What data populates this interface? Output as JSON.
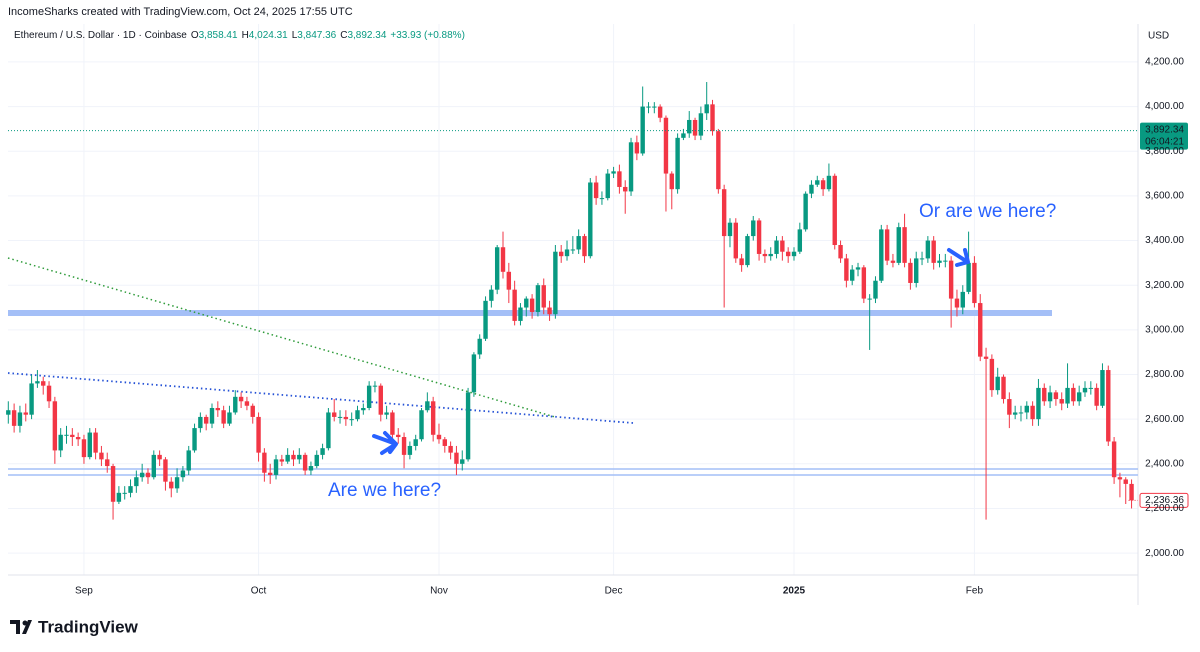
{
  "chart_data": {
    "type": "candlestick",
    "header": "IncomeSharks created with TradingView.com, Oct 24, 2025 17:55 UTC",
    "symbol": "Ethereum / U.S. Dollar · 1D · Coinbase",
    "quote": [
      {
        "key": "O",
        "value": "3,858.41"
      },
      {
        "key": "H",
        "value": "4,024.31"
      },
      {
        "key": "L",
        "value": "3,847.36"
      },
      {
        "key": "C",
        "value": "3,892.34"
      }
    ],
    "change": "+33.93 (+0.88%)",
    "currency": "USD",
    "last_price": {
      "value": 3892.34,
      "label": "3,892.34"
    },
    "countdown": "06:04:21",
    "last_close_label": "2,236.36",
    "annotations": [
      "Are we here?",
      "Or are we here?"
    ],
    "brand": "TradingView",
    "up_color": "#089981",
    "down_color": "#f23645",
    "grid": true,
    "ylim": [
      1902,
      4343
    ],
    "yticks": [
      {
        "value": 2000,
        "label": "2,000.00"
      },
      {
        "value": 2200,
        "label": "2,200.00"
      },
      {
        "value": 2400,
        "label": "2,400.00"
      },
      {
        "value": 2600,
        "label": "2,600.00"
      },
      {
        "value": 2800,
        "label": "2,800.00"
      },
      {
        "value": 3000,
        "label": "3,000.00"
      },
      {
        "value": 3200,
        "label": "3,200.00"
      },
      {
        "value": 3400,
        "label": "3,400.00"
      },
      {
        "value": 3600,
        "label": "3,600.00"
      },
      {
        "value": 3800,
        "label": "3,800.00"
      },
      {
        "value": 4000,
        "label": "4,000.00"
      },
      {
        "value": 4200,
        "label": "4,200.00"
      }
    ],
    "categories": [
      null,
      null,
      null,
      null,
      null,
      null,
      null,
      null,
      null,
      null,
      null,
      null,
      null,
      "Sep",
      null,
      null,
      null,
      null,
      null,
      null,
      null,
      null,
      null,
      null,
      null,
      null,
      null,
      null,
      null,
      null,
      null,
      null,
      null,
      null,
      null,
      null,
      null,
      null,
      null,
      null,
      null,
      null,
      null,
      "Oct",
      null,
      null,
      null,
      null,
      null,
      null,
      null,
      null,
      null,
      null,
      null,
      null,
      null,
      null,
      null,
      null,
      null,
      null,
      null,
      null,
      null,
      null,
      null,
      null,
      null,
      null,
      null,
      null,
      null,
      null,
      "Nov",
      null,
      null,
      null,
      null,
      null,
      null,
      null,
      null,
      null,
      null,
      null,
      null,
      null,
      null,
      null,
      null,
      null,
      null,
      null,
      null,
      null,
      null,
      null,
      null,
      null,
      null,
      null,
      null,
      null,
      "Dec",
      null,
      null,
      null,
      null,
      null,
      null,
      null,
      null,
      null,
      null,
      null,
      null,
      null,
      null,
      null,
      null,
      null,
      null,
      null,
      null,
      null,
      null,
      null,
      null,
      null,
      null,
      null,
      null,
      null,
      null,
      "2025",
      null,
      null,
      null,
      null,
      null,
      null,
      null,
      null,
      null,
      null,
      null,
      null,
      null,
      null,
      null,
      null,
      null,
      null,
      null,
      null,
      null,
      null,
      null,
      null,
      null,
      null,
      null,
      null,
      null,
      null,
      "Feb",
      null,
      null,
      null,
      null,
      null,
      null,
      null,
      null,
      null,
      null,
      null,
      null,
      null,
      null,
      null,
      null,
      null,
      null,
      null,
      null,
      null,
      null,
      null,
      null,
      null,
      null,
      null
    ],
    "open": [
      2620,
      2640,
      2570,
      2630,
      2620,
      2760,
      2770,
      2750,
      2680,
      2460,
      2530,
      2530,
      2520,
      2510,
      2430,
      2540,
      2450,
      2420,
      2390,
      2230,
      2270,
      2270,
      2300,
      2340,
      2360,
      2340,
      2440,
      2420,
      2320,
      2290,
      2340,
      2370,
      2460,
      2560,
      2610,
      2580,
      2650,
      2640,
      2580,
      2630,
      2700,
      2680,
      2660,
      2610,
      2450,
      2360,
      2350,
      2420,
      2410,
      2440,
      2420,
      2440,
      2370,
      2390,
      2440,
      2470,
      2630,
      2610,
      2610,
      2600,
      2600,
      2640,
      2650,
      2750,
      2750,
      2620,
      2630,
      2530,
      2520,
      2440,
      2480,
      2510,
      2640,
      2680,
      2530,
      2510,
      2480,
      2450,
      2400,
      2420,
      2720,
      2890,
      2960,
      3130,
      3180,
      3370,
      3260,
      3180,
      3040,
      3100,
      3140,
      3080,
      3200,
      3100,
      3070,
      3350,
      3330,
      3360,
      3360,
      3420,
      3330,
      3660,
      3590,
      3590,
      3700,
      3710,
      3640,
      3620,
      3840,
      3790,
      4000,
      4000,
      4000,
      3950,
      3700,
      3630,
      3860,
      3880,
      3940,
      3870,
      3970,
      4010,
      3890,
      3630,
      3420,
      3480,
      3320,
      3290,
      3420,
      3490,
      3340,
      3330,
      3340,
      3400,
      3350,
      3330,
      3350,
      3450,
      3610,
      3650,
      3670,
      3630,
      3690,
      3380,
      3320,
      3220,
      3270,
      3280,
      3140,
      3140,
      3220,
      3450,
      3310,
      3300,
      3460,
      3300,
      3210,
      3320,
      3320,
      3400,
      3300,
      3310,
      3310,
      3140,
      3100,
      3170,
      3300,
      3120,
      2880,
      2870,
      2730,
      2790,
      2690,
      2620,
      2630,
      2630,
      2660,
      2600,
      2740,
      2680,
      2720,
      2690,
      2670,
      2740,
      2680,
      2720,
      2740,
      2740,
      2660,
      2820,
      2500,
      2340,
      2330,
      2310
    ],
    "high": [
      2680,
      2670,
      2660,
      2670,
      2800,
      2820,
      2790,
      2770,
      2700,
      2560,
      2570,
      2560,
      2540,
      2530,
      2560,
      2560,
      2480,
      2450,
      2400,
      2300,
      2300,
      2330,
      2370,
      2400,
      2380,
      2460,
      2460,
      2430,
      2340,
      2380,
      2390,
      2480,
      2580,
      2630,
      2620,
      2670,
      2680,
      2660,
      2660,
      2730,
      2720,
      2700,
      2670,
      2630,
      2470,
      2400,
      2440,
      2440,
      2470,
      2460,
      2470,
      2450,
      2410,
      2460,
      2490,
      2650,
      2690,
      2640,
      2640,
      2630,
      2660,
      2670,
      2770,
      2770,
      2760,
      2660,
      2640,
      2560,
      2540,
      2500,
      2530,
      2650,
      2720,
      2700,
      2580,
      2520,
      2500,
      2480,
      2460,
      2740,
      2900,
      2980,
      3150,
      3200,
      3380,
      3440,
      3300,
      3220,
      3120,
      3150,
      3160,
      3210,
      3230,
      3130,
      3380,
      3380,
      3400,
      3420,
      3450,
      3430,
      3680,
      3690,
      3620,
      3720,
      3730,
      3740,
      3670,
      3860,
      3870,
      4090,
      4020,
      4020,
      4010,
      3960,
      3710,
      3880,
      3900,
      3980,
      3950,
      4000,
      4110,
      4030,
      3900,
      3650,
      3500,
      3500,
      3340,
      3430,
      3510,
      3500,
      3360,
      3370,
      3420,
      3420,
      3370,
      3370,
      3480,
      3620,
      3670,
      3690,
      3680,
      3745,
      3700,
      3400,
      3340,
      3290,
      3300,
      3290,
      3160,
      3240,
      3470,
      3470,
      3340,
      3480,
      3520,
      3320,
      3350,
      3350,
      3420,
      3420,
      3340,
      3340,
      3330,
      3180,
      3200,
      3440,
      3330,
      3160,
      2920,
      2890,
      2830,
      2800,
      2720,
      2660,
      2660,
      2680,
      2680,
      2780,
      2760,
      2750,
      2730,
      2720,
      2850,
      2760,
      2750,
      2770,
      2770,
      2760,
      2850,
      2840,
      2520,
      2360,
      2340,
      2330
    ],
    "low": [
      2580,
      2540,
      2540,
      2590,
      2600,
      2740,
      2710,
      2650,
      2400,
      2430,
      2490,
      2480,
      2480,
      2400,
      2420,
      2420,
      2390,
      2360,
      2150,
      2220,
      2240,
      2250,
      2270,
      2320,
      2310,
      2330,
      2390,
      2280,
      2250,
      2270,
      2320,
      2350,
      2450,
      2540,
      2550,
      2560,
      2610,
      2560,
      2570,
      2620,
      2650,
      2640,
      2580,
      2410,
      2320,
      2310,
      2330,
      2390,
      2400,
      2390,
      2400,
      2350,
      2350,
      2380,
      2420,
      2460,
      2590,
      2580,
      2570,
      2570,
      2590,
      2620,
      2640,
      2720,
      2590,
      2600,
      2500,
      2490,
      2380,
      2420,
      2460,
      2500,
      2630,
      2500,
      2490,
      2450,
      2420,
      2350,
      2370,
      2410,
      2700,
      2870,
      2950,
      3100,
      3160,
      3230,
      3120,
      3020,
      3020,
      3060,
      3050,
      3060,
      3070,
      3040,
      3050,
      3300,
      3310,
      3340,
      3340,
      3300,
      3320,
      3560,
      3560,
      3580,
      3680,
      3610,
      3520,
      3600,
      3760,
      3780,
      3970,
      3970,
      3930,
      3530,
      3540,
      3610,
      3850,
      3860,
      3850,
      3850,
      3940,
      3870,
      3610,
      3100,
      3370,
      3300,
      3260,
      3280,
      3400,
      3310,
      3300,
      3310,
      3320,
      3310,
      3300,
      3310,
      3340,
      3440,
      3590,
      3640,
      3600,
      3620,
      3360,
      3300,
      3190,
      3200,
      3240,
      3120,
      2910,
      3120,
      3210,
      3290,
      3280,
      3290,
      3280,
      3180,
      3190,
      3290,
      3300,
      3270,
      3280,
      3280,
      3010,
      3060,
      3070,
      3160,
      3100,
      2860,
      2150,
      2700,
      2710,
      2670,
      2560,
      2600,
      2590,
      2600,
      2570,
      2570,
      2660,
      2650,
      2660,
      2640,
      2650,
      2660,
      2660,
      2700,
      2710,
      2640,
      2650,
      2480,
      2310,
      2250,
      2220,
      2200
    ],
    "close": [
      2640,
      2570,
      2630,
      2620,
      2760,
      2770,
      2750,
      2680,
      2460,
      2530,
      2530,
      2520,
      2510,
      2430,
      2540,
      2450,
      2420,
      2390,
      2230,
      2270,
      2270,
      2300,
      2340,
      2360,
      2340,
      2440,
      2420,
      2320,
      2290,
      2340,
      2370,
      2460,
      2560,
      2610,
      2580,
      2650,
      2640,
      2580,
      2630,
      2700,
      2680,
      2660,
      2610,
      2450,
      2360,
      2350,
      2420,
      2410,
      2440,
      2420,
      2440,
      2370,
      2390,
      2440,
      2470,
      2630,
      2610,
      2610,
      2600,
      2600,
      2640,
      2650,
      2750,
      2750,
      2620,
      2630,
      2530,
      2520,
      2440,
      2480,
      2510,
      2640,
      2680,
      2530,
      2510,
      2480,
      2450,
      2400,
      2420,
      2720,
      2890,
      2960,
      3130,
      3180,
      3370,
      3260,
      3180,
      3040,
      3100,
      3140,
      3080,
      3200,
      3100,
      3070,
      3350,
      3330,
      3360,
      3360,
      3420,
      3330,
      3660,
      3590,
      3590,
      3700,
      3710,
      3640,
      3620,
      3840,
      3790,
      4000,
      4000,
      4000,
      3950,
      3700,
      3630,
      3860,
      3880,
      3940,
      3870,
      3970,
      4010,
      3890,
      3630,
      3420,
      3480,
      3320,
      3290,
      3420,
      3490,
      3340,
      3330,
      3340,
      3400,
      3350,
      3330,
      3350,
      3450,
      3610,
      3650,
      3670,
      3630,
      3690,
      3380,
      3320,
      3220,
      3270,
      3280,
      3140,
      3140,
      3220,
      3450,
      3310,
      3300,
      3460,
      3300,
      3210,
      3320,
      3320,
      3400,
      3300,
      3310,
      3310,
      3140,
      3100,
      3170,
      3300,
      3120,
      2880,
      2870,
      2730,
      2790,
      2690,
      2620,
      2630,
      2630,
      2660,
      2600,
      2740,
      2680,
      2720,
      2690,
      2670,
      2740,
      2680,
      2720,
      2740,
      2740,
      2660,
      2820,
      2500,
      2340,
      2330,
      2310,
      2236.36
    ]
  }
}
